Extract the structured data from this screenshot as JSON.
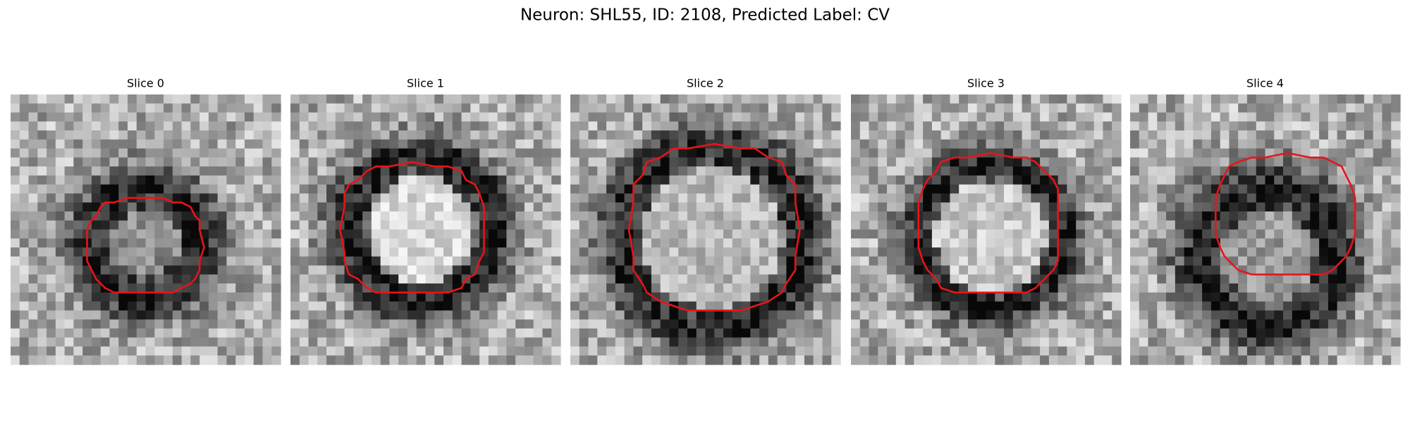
{
  "title": "Neuron: SHL55, ID: 2108, Predicted Label: CV",
  "panels": [
    {
      "title": "Slice 0"
    },
    {
      "title": "Slice 1"
    },
    {
      "title": "Slice 2"
    },
    {
      "title": "Slice 3"
    },
    {
      "title": "Slice 4"
    }
  ]
}
